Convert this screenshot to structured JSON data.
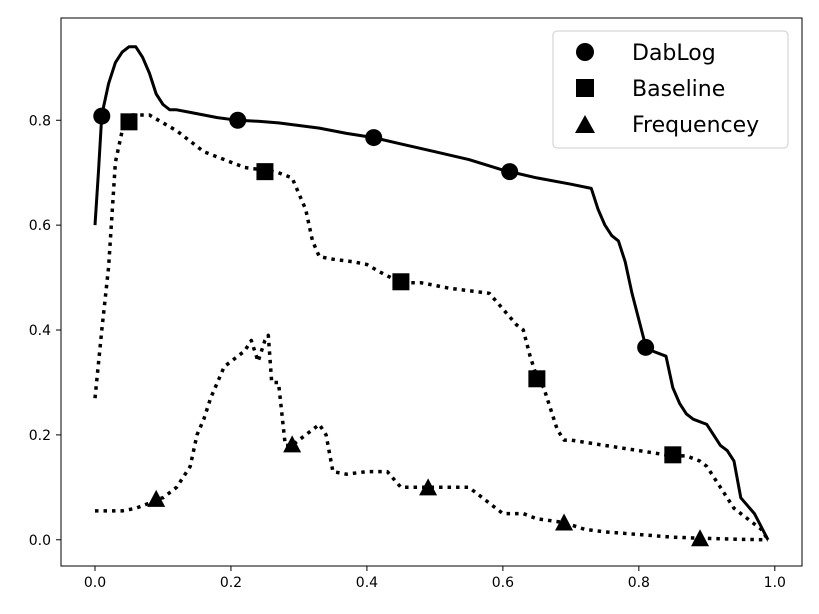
{
  "chart_data": {
    "type": "line",
    "title": "",
    "xlabel": "",
    "ylabel": "",
    "xlim": [
      -0.05,
      1.04
    ],
    "ylim": [
      -0.05,
      0.995
    ],
    "grid": false,
    "legend": {
      "position": "top-right"
    },
    "xticks": [
      0.0,
      0.2,
      0.4,
      0.6,
      0.8,
      1.0
    ],
    "yticks": [
      0.0,
      0.2,
      0.4,
      0.6,
      0.8
    ],
    "xtick_labels": [
      "0.0",
      "0.2",
      "0.4",
      "0.6",
      "0.8",
      "1.0"
    ],
    "ytick_labels": [
      "0.0",
      "0.2",
      "0.4",
      "0.6",
      "0.8"
    ],
    "series": [
      {
        "name": "DabLog",
        "line_style": "solid",
        "marker": "circle",
        "x": [
          0.0,
          0.005,
          0.01,
          0.015,
          0.02,
          0.03,
          0.04,
          0.05,
          0.06,
          0.07,
          0.08,
          0.09,
          0.1,
          0.11,
          0.12,
          0.14,
          0.16,
          0.18,
          0.21,
          0.24,
          0.27,
          0.3,
          0.33,
          0.37,
          0.41,
          0.45,
          0.5,
          0.55,
          0.6,
          0.61,
          0.65,
          0.7,
          0.73,
          0.74,
          0.75,
          0.76,
          0.77,
          0.78,
          0.79,
          0.8,
          0.81,
          0.82,
          0.84,
          0.85,
          0.86,
          0.87,
          0.88,
          0.9,
          0.92,
          0.93,
          0.94,
          0.95,
          0.97,
          0.99
        ],
        "y": [
          0.6,
          0.7,
          0.81,
          0.84,
          0.87,
          0.91,
          0.93,
          0.94,
          0.94,
          0.92,
          0.89,
          0.85,
          0.83,
          0.82,
          0.82,
          0.815,
          0.81,
          0.805,
          0.8,
          0.798,
          0.795,
          0.79,
          0.785,
          0.775,
          0.767,
          0.755,
          0.74,
          0.725,
          0.705,
          0.702,
          0.69,
          0.678,
          0.67,
          0.63,
          0.6,
          0.58,
          0.57,
          0.53,
          0.47,
          0.42,
          0.37,
          0.36,
          0.35,
          0.29,
          0.26,
          0.24,
          0.23,
          0.22,
          0.18,
          0.17,
          0.15,
          0.08,
          0.05,
          0.0
        ],
        "markers_x": [
          0.01,
          0.21,
          0.41,
          0.61,
          0.81
        ],
        "markers_y": [
          0.808,
          0.8,
          0.767,
          0.702,
          0.367
        ]
      },
      {
        "name": "Baseline",
        "line_style": "dotted",
        "marker": "square",
        "x": [
          0.0,
          0.01,
          0.02,
          0.03,
          0.04,
          0.05,
          0.06,
          0.08,
          0.1,
          0.12,
          0.14,
          0.16,
          0.18,
          0.2,
          0.22,
          0.25,
          0.27,
          0.29,
          0.3,
          0.31,
          0.32,
          0.33,
          0.35,
          0.38,
          0.4,
          0.42,
          0.45,
          0.48,
          0.5,
          0.52,
          0.55,
          0.58,
          0.6,
          0.62,
          0.63,
          0.64,
          0.65,
          0.66,
          0.67,
          0.68,
          0.69,
          0.7,
          0.75,
          0.8,
          0.85,
          0.87,
          0.89,
          0.9,
          0.91,
          0.92,
          0.94,
          0.96,
          0.98,
          0.99
        ],
        "y": [
          0.27,
          0.4,
          0.52,
          0.72,
          0.78,
          0.81,
          0.81,
          0.81,
          0.795,
          0.78,
          0.76,
          0.74,
          0.73,
          0.72,
          0.71,
          0.705,
          0.7,
          0.69,
          0.66,
          0.63,
          0.57,
          0.54,
          0.535,
          0.53,
          0.525,
          0.51,
          0.49,
          0.49,
          0.485,
          0.48,
          0.475,
          0.47,
          0.44,
          0.41,
          0.4,
          0.35,
          0.31,
          0.29,
          0.25,
          0.21,
          0.19,
          0.19,
          0.18,
          0.17,
          0.16,
          0.16,
          0.15,
          0.14,
          0.12,
          0.1,
          0.06,
          0.04,
          0.02,
          0.0
        ],
        "markers_x": [
          0.05,
          0.25,
          0.45,
          0.65,
          0.85
        ],
        "markers_y": [
          0.797,
          0.702,
          0.492,
          0.307,
          0.162
        ]
      },
      {
        "name": "Frequencey",
        "line_style": "dotted",
        "marker": "triangle",
        "x": [
          0.0,
          0.02,
          0.04,
          0.06,
          0.08,
          0.09,
          0.1,
          0.12,
          0.13,
          0.14,
          0.15,
          0.16,
          0.17,
          0.18,
          0.19,
          0.2,
          0.21,
          0.22,
          0.23,
          0.24,
          0.25,
          0.255,
          0.26,
          0.27,
          0.28,
          0.29,
          0.3,
          0.31,
          0.32,
          0.33,
          0.34,
          0.35,
          0.37,
          0.4,
          0.43,
          0.45,
          0.47,
          0.5,
          0.55,
          0.58,
          0.6,
          0.63,
          0.65,
          0.69,
          0.72,
          0.75,
          0.8,
          0.85,
          0.89,
          0.95,
          0.99
        ],
        "y": [
          0.055,
          0.055,
          0.055,
          0.06,
          0.07,
          0.078,
          0.08,
          0.1,
          0.12,
          0.14,
          0.2,
          0.23,
          0.27,
          0.3,
          0.33,
          0.34,
          0.35,
          0.36,
          0.38,
          0.34,
          0.38,
          0.39,
          0.3,
          0.3,
          0.18,
          0.18,
          0.19,
          0.2,
          0.21,
          0.22,
          0.2,
          0.13,
          0.125,
          0.13,
          0.13,
          0.1,
          0.1,
          0.1,
          0.1,
          0.07,
          0.05,
          0.05,
          0.04,
          0.033,
          0.02,
          0.015,
          0.01,
          0.005,
          0.003,
          0.001,
          0.0
        ],
        "markers_x": [
          0.09,
          0.29,
          0.49,
          0.69,
          0.89
        ],
        "markers_y": [
          0.078,
          0.182,
          0.1,
          0.033,
          0.003
        ]
      }
    ]
  }
}
